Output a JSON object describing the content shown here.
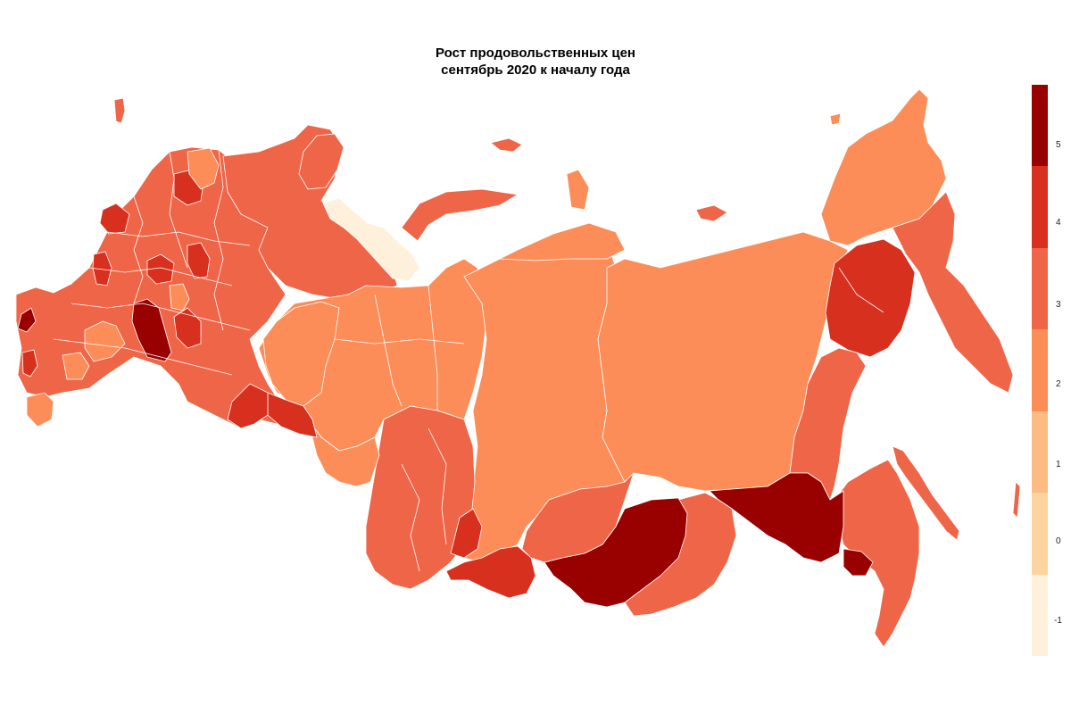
{
  "title_line1": "Рост продовольственных цен",
  "title_line2": "сентябрь 2020 к началу года",
  "colors": {
    "c_neg1": "#fff0dc",
    "c_0": "#fdd3a0",
    "c_1": "#fdbb84",
    "c_2": "#fc8d59",
    "c_3": "#ef6548",
    "c_4": "#d7301f",
    "c_5": "#990000"
  },
  "legend": {
    "labels": [
      "5",
      "4",
      "3",
      "2",
      "1",
      "0",
      "-1"
    ]
  }
}
